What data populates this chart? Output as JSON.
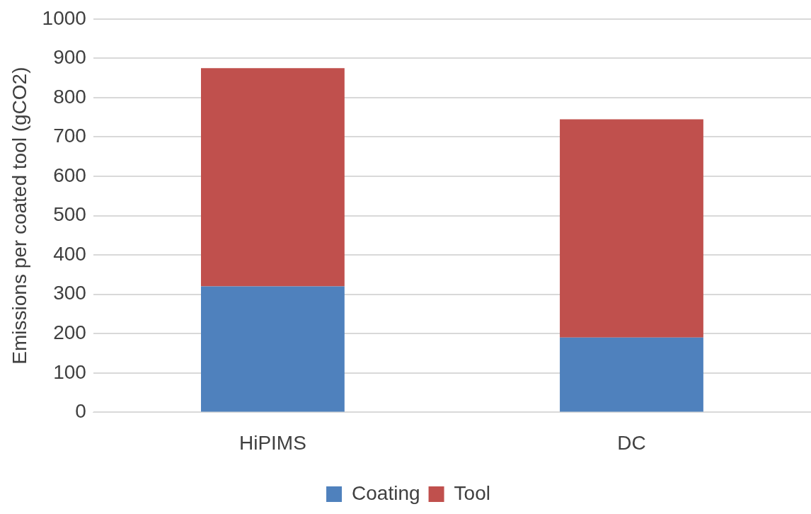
{
  "chart_data": {
    "type": "bar",
    "stacked": true,
    "ylabel": "Emissions per coated tool (gCO2)",
    "categories": [
      "HiPIMS",
      "DC"
    ],
    "series": [
      {
        "name": "Coating",
        "color": "#4f81bd",
        "values": [
          320,
          190
        ]
      },
      {
        "name": "Tool",
        "color": "#c0504d",
        "values": [
          555,
          555
        ]
      }
    ],
    "ylim": [
      0,
      1000
    ],
    "yticks": [
      0,
      100,
      200,
      300,
      400,
      500,
      600,
      700,
      800,
      900,
      1000
    ],
    "grid": "y",
    "legend": "bottom"
  }
}
